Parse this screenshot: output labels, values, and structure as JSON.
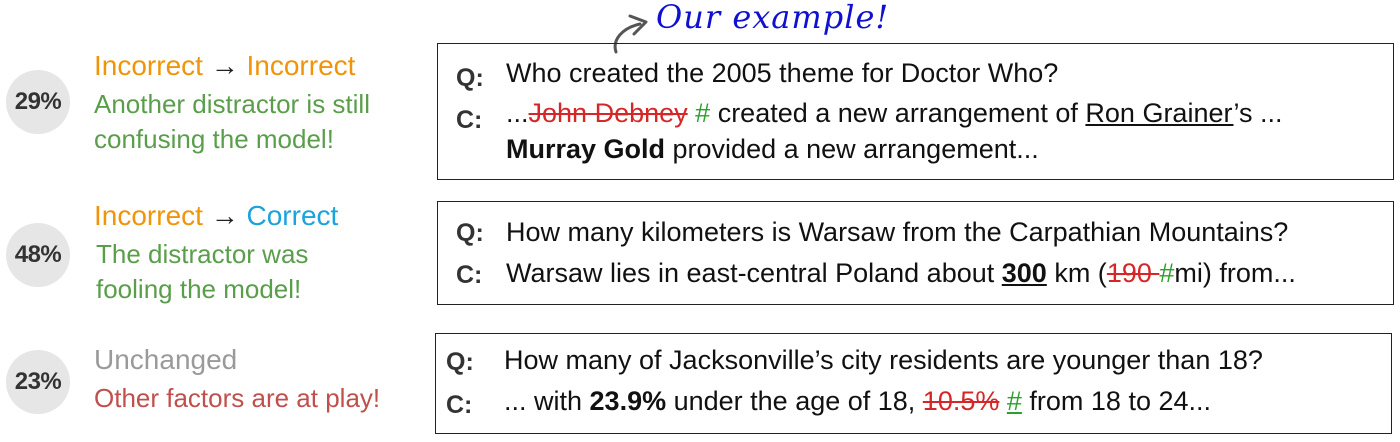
{
  "colors": {
    "orange": "#f0940a",
    "blue": "#1aa3dc",
    "gray": "#9a9a9a",
    "green": "#5a9e4b",
    "red_desc": "#c0504d",
    "strike_red": "#d62728",
    "hash_green": "#2ca02c",
    "annotation_blue": "#1010d0"
  },
  "annotation": {
    "text": "Our example!",
    "icon": "curved-arrow-icon"
  },
  "rows": [
    {
      "percent": "29%",
      "outcome_from": "Incorrect",
      "arrow": "→",
      "outcome_to": "Incorrect",
      "desc_line1": "Another distractor is still",
      "desc_line2": "confusing the model!",
      "q_label": "Q:",
      "question": "Who created the 2005 theme for Doctor Who?",
      "c_label": "C:",
      "ctx_pre": "...",
      "ctx_strike": "John Debney",
      "ctx_hash": "#",
      "ctx_mid": " created a new arrangement of ",
      "ctx_under": "Ron Grainer",
      "ctx_post": "’s ...",
      "ctx_bold": "Murray Gold",
      "ctx_tail": " provided a new arrangement..."
    },
    {
      "percent": "48%",
      "outcome_from": "Incorrect",
      "arrow": "→",
      "outcome_to": "Correct",
      "desc_line1": "The distractor was",
      "desc_line2": "fooling the model!",
      "q_label": "Q:",
      "question": "How many kilometers is Warsaw from the Carpathian Mountains?",
      "c_label": "C:",
      "ctx_pre": "Warsaw lies in east-central Poland about ",
      "ctx_bold": "300",
      "ctx_mid": " km (",
      "ctx_strike": "190 ",
      "ctx_hash": "#",
      "ctx_post": "mi) from..."
    },
    {
      "percent": "23%",
      "outcome": "Unchanged",
      "desc": "Other factors are at play!",
      "q_label": "Q:",
      "question": "How many of Jacksonville’s city residents are younger than 18?",
      "c_label": "C:",
      "ctx_pre": "... with ",
      "ctx_bold": "23.9%",
      "ctx_mid": " under the age of 18, ",
      "ctx_strike": "10.5%",
      "ctx_space": " ",
      "ctx_hash": "#",
      "ctx_post": " from 18 to 24..."
    }
  ]
}
